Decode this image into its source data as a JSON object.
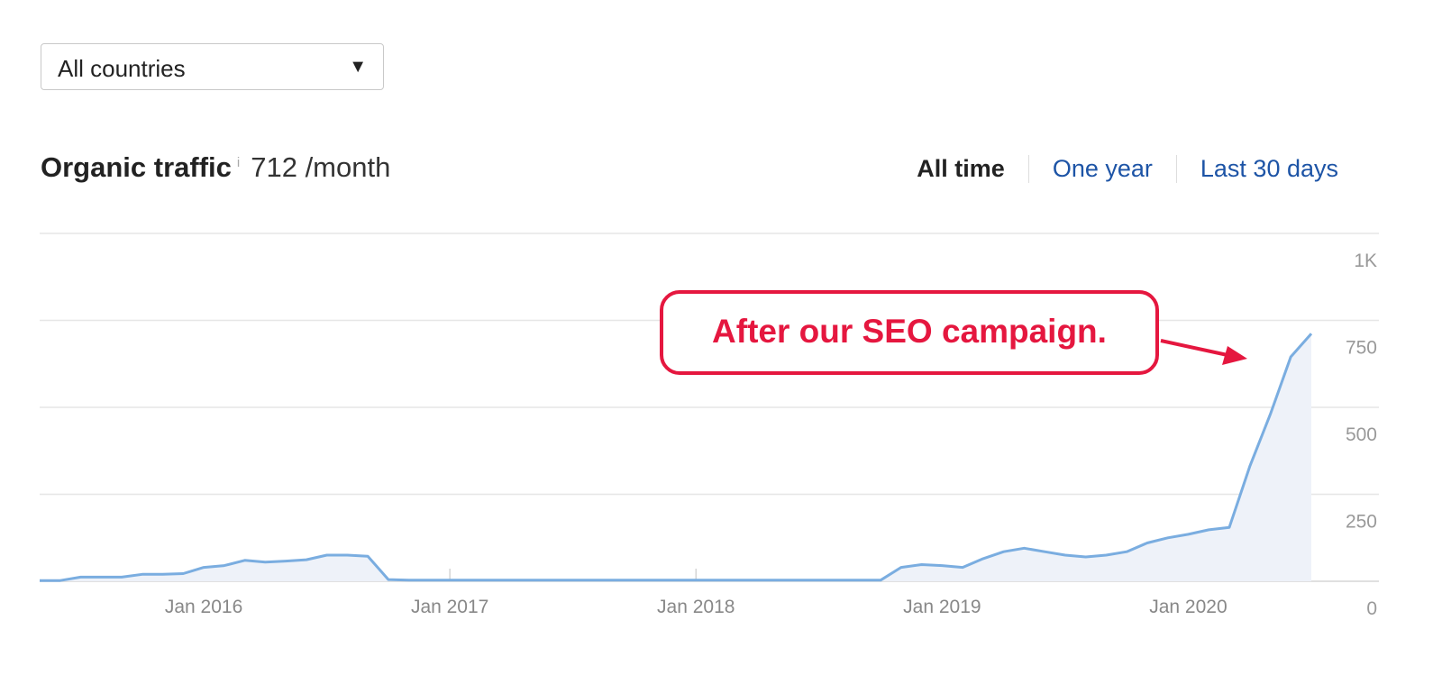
{
  "filter": {
    "country": "All countries"
  },
  "header": {
    "title": "Organic traffic",
    "info": "i",
    "summary": "712 /month",
    "tabs": [
      "All time",
      "One year",
      "Last 30 days"
    ]
  },
  "chart_data": {
    "type": "area",
    "annotation": "After our SEO campaign.",
    "x": [
      "2015-05",
      "2015-06",
      "2015-07",
      "2015-08",
      "2015-09",
      "2015-10",
      "2015-11",
      "2015-12",
      "2016-01",
      "2016-02",
      "2016-03",
      "2016-04",
      "2016-05",
      "2016-06",
      "2016-07",
      "2016-08",
      "2016-09",
      "2016-10",
      "2016-11",
      "2016-12",
      "2017-01",
      "2017-02",
      "2017-03",
      "2017-04",
      "2017-05",
      "2017-06",
      "2017-07",
      "2017-08",
      "2017-09",
      "2017-10",
      "2017-11",
      "2017-12",
      "2018-01",
      "2018-02",
      "2018-03",
      "2018-04",
      "2018-05",
      "2018-06",
      "2018-07",
      "2018-08",
      "2018-09",
      "2018-10",
      "2018-11",
      "2018-12",
      "2019-01",
      "2019-02",
      "2019-03",
      "2019-04",
      "2019-05",
      "2019-06",
      "2019-07",
      "2019-08",
      "2019-09",
      "2019-10",
      "2019-11",
      "2019-12",
      "2020-01",
      "2020-02",
      "2020-03",
      "2020-04",
      "2020-05",
      "2020-06",
      "2020-07"
    ],
    "series": [
      {
        "color": "#7aade0",
        "fill": "#eef2f9",
        "values": [
          2,
          2,
          12,
          12,
          12,
          20,
          20,
          22,
          40,
          45,
          60,
          55,
          58,
          62,
          75,
          75,
          72,
          5,
          3,
          3,
          3,
          3,
          3,
          3,
          3,
          3,
          3,
          3,
          3,
          3,
          3,
          3,
          3,
          3,
          3,
          3,
          3,
          3,
          3,
          3,
          3,
          3,
          40,
          48,
          45,
          40,
          65,
          85,
          95,
          85,
          75,
          70,
          75,
          85,
          110,
          125,
          135,
          148,
          155,
          330,
          480,
          645,
          712
        ]
      }
    ],
    "xlim": [
      "2015-05",
      "2020-07"
    ],
    "xticks": [
      {
        "value": "2016-01",
        "label": "Jan 2016"
      },
      {
        "value": "2017-01",
        "label": "Jan 2017"
      },
      {
        "value": "2018-01",
        "label": "Jan 2018"
      },
      {
        "value": "2019-01",
        "label": "Jan 2019"
      },
      {
        "value": "2020-01",
        "label": "Jan 2020"
      }
    ],
    "ylim": [
      0,
      1000
    ],
    "yticks": [
      0,
      250,
      500,
      750,
      {
        "value": 1000,
        "label": "1K"
      }
    ],
    "grid": true
  }
}
